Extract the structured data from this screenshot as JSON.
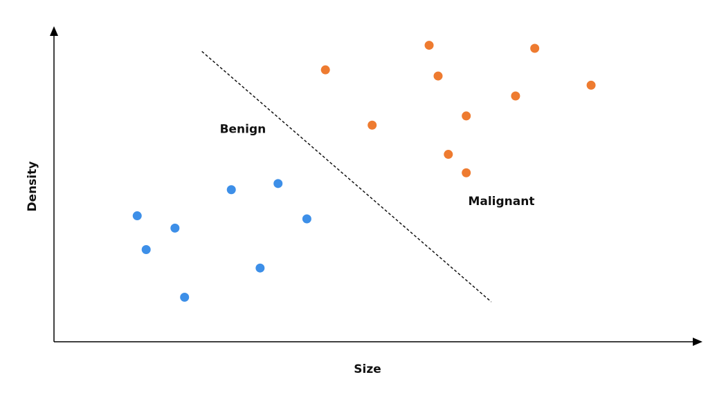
{
  "chart_data": {
    "type": "scatter",
    "xlabel": "Size",
    "ylabel": "Density",
    "xlim": [
      0,
      100
    ],
    "ylim": [
      0,
      100
    ],
    "grid": false,
    "series": [
      {
        "color": "#3d8fe8",
        "points": [
          {
            "x": 13.0,
            "y": 41.0
          },
          {
            "x": 14.4,
            "y": 30.0
          },
          {
            "x": 18.9,
            "y": 37.0
          },
          {
            "x": 20.4,
            "y": 14.5
          },
          {
            "x": 27.7,
            "y": 49.5
          },
          {
            "x": 32.2,
            "y": 24.0
          },
          {
            "x": 35.0,
            "y": 51.5
          },
          {
            "x": 39.5,
            "y": 40.0
          }
        ]
      },
      {
        "color": "#ee7b30",
        "points": [
          {
            "x": 42.4,
            "y": 88.5
          },
          {
            "x": 49.7,
            "y": 70.5
          },
          {
            "x": 58.6,
            "y": 96.5
          },
          {
            "x": 60.0,
            "y": 86.5
          },
          {
            "x": 61.6,
            "y": 61.0
          },
          {
            "x": 64.4,
            "y": 73.5
          },
          {
            "x": 64.4,
            "y": 55.0
          },
          {
            "x": 72.1,
            "y": 80.0
          },
          {
            "x": 75.1,
            "y": 95.5
          },
          {
            "x": 83.9,
            "y": 83.5
          }
        ]
      }
    ],
    "annotations": [
      {
        "text": "Benign",
        "x": 25.9,
        "y": 68.0
      },
      {
        "text": "Malignant",
        "x": 64.7,
        "y": 44.5
      }
    ],
    "boundary": {
      "style": "dashed",
      "color": "#111111",
      "from": {
        "x": 23.1,
        "y": 94.5
      },
      "to": {
        "x": 68.3,
        "y": 13.0
      }
    },
    "axis_color": "#000000"
  }
}
